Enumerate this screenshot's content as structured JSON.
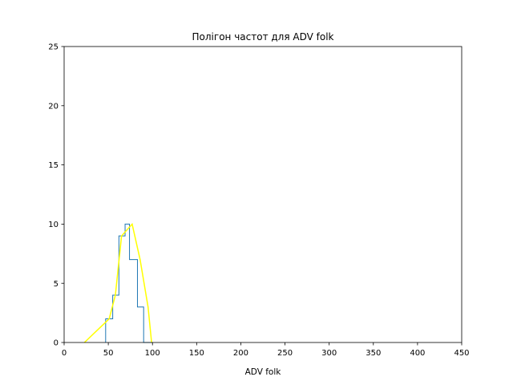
{
  "chart_data": {
    "type": "line",
    "title": "Полігон частот для ADV folk",
    "xlabel": "ADV folk",
    "ylabel": "",
    "xlim": [
      0,
      450
    ],
    "ylim": [
      0,
      25
    ],
    "xticks": [
      0,
      50,
      100,
      150,
      200,
      250,
      300,
      350,
      400,
      450
    ],
    "yticks": [
      0,
      5,
      10,
      15,
      20,
      25
    ],
    "grid": false,
    "series": [
      {
        "kind": "step",
        "color": "#1f77b4",
        "bin_edges": [
          47,
          55,
          62,
          69,
          74,
          83,
          90,
          100
        ],
        "counts": [
          2,
          4,
          9,
          10,
          7,
          3,
          0
        ]
      },
      {
        "kind": "polygon",
        "color": "#ffff00",
        "x": [
          23,
          51,
          58,
          65,
          77,
          86,
          95,
          99
        ],
        "y": [
          0,
          2,
          4,
          9,
          10,
          7,
          3,
          0
        ]
      }
    ]
  }
}
